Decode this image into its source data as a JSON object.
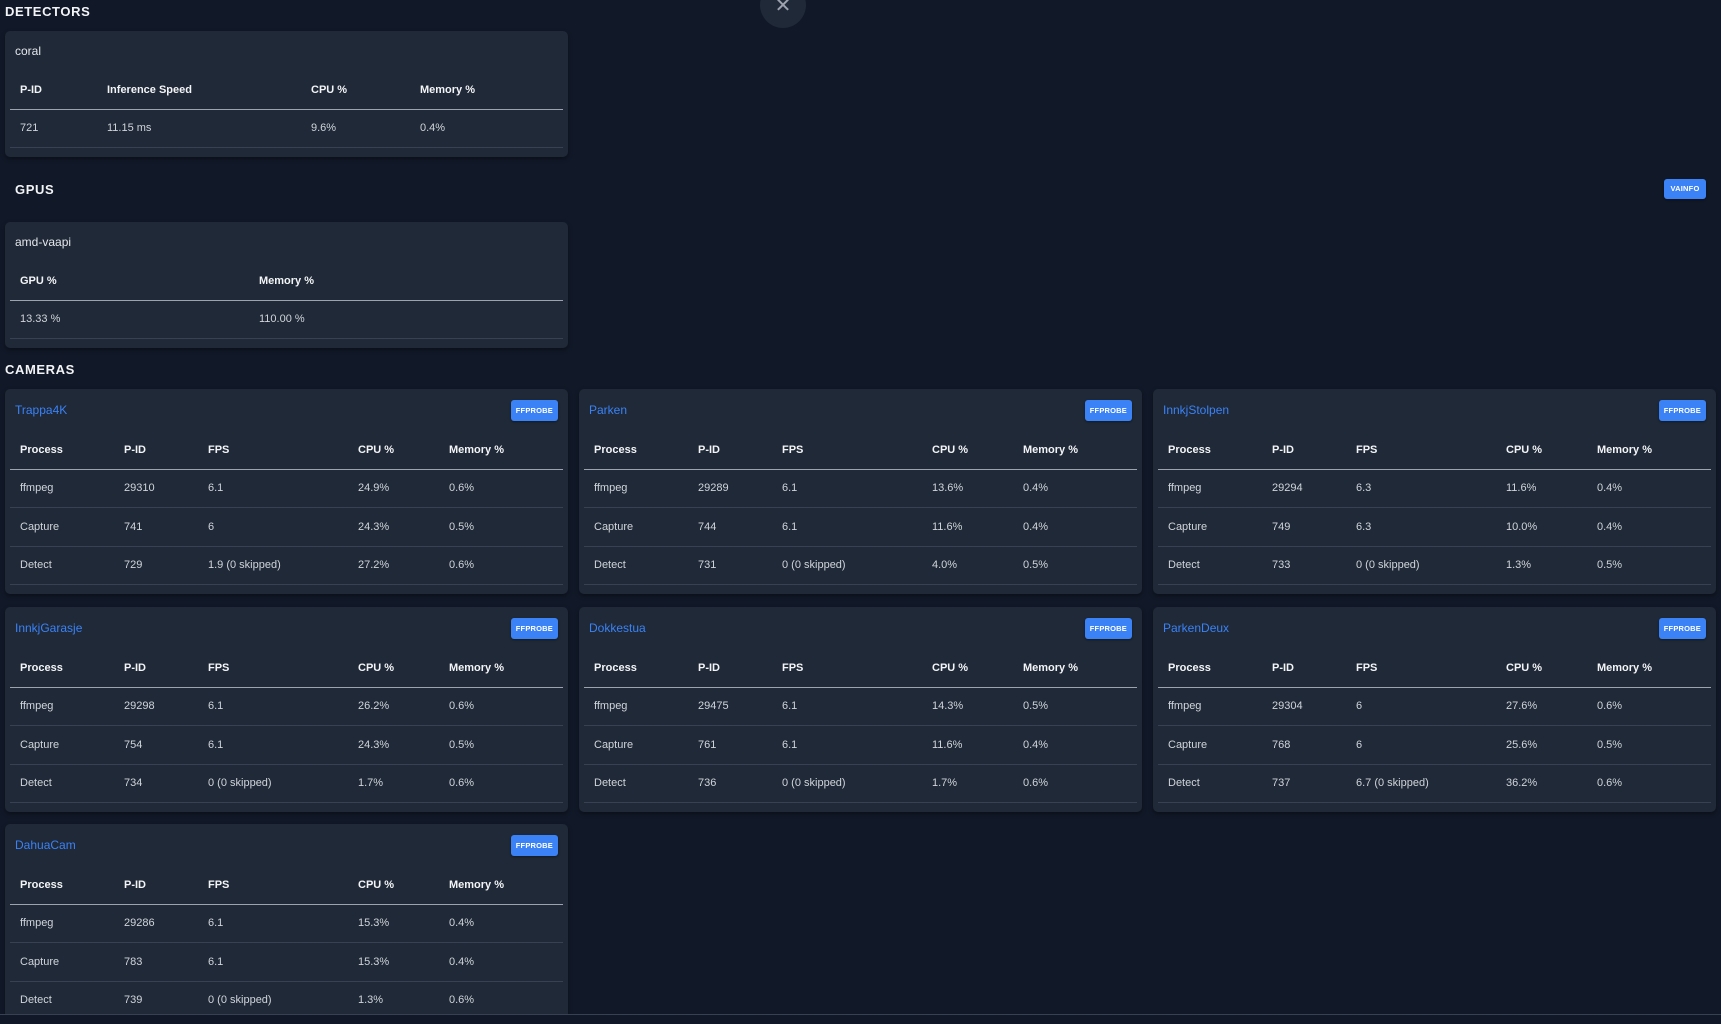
{
  "detectors": {
    "section_title": "DETECTORS",
    "name": "coral",
    "headers": [
      "P-ID",
      "Inference Speed",
      "CPU %",
      "Memory %"
    ],
    "rows": [
      [
        "721",
        "11.15 ms",
        "9.6%",
        "0.4%"
      ]
    ]
  },
  "gpus": {
    "section_title": "GPUS",
    "vainfo_label": "VAINFO",
    "name": "amd-vaapi",
    "headers": [
      "GPU %",
      "Memory %"
    ],
    "rows": [
      [
        "13.33 %",
        "110.00 %"
      ]
    ]
  },
  "cameras": {
    "section_title": "CAMERAS",
    "ffprobe_label": "FFPROBE",
    "headers": [
      "Process",
      "P-ID",
      "FPS",
      "CPU %",
      "Memory %"
    ],
    "list": [
      {
        "name": "Trappa4K",
        "rows": [
          [
            "ffmpeg",
            "29310",
            "6.1",
            "24.9%",
            "0.6%"
          ],
          [
            "Capture",
            "741",
            "6",
            "24.3%",
            "0.5%"
          ],
          [
            "Detect",
            "729",
            "1.9 (0 skipped)",
            "27.2%",
            "0.6%"
          ]
        ]
      },
      {
        "name": "Parken",
        "rows": [
          [
            "ffmpeg",
            "29289",
            "6.1",
            "13.6%",
            "0.4%"
          ],
          [
            "Capture",
            "744",
            "6.1",
            "11.6%",
            "0.4%"
          ],
          [
            "Detect",
            "731",
            "0 (0 skipped)",
            "4.0%",
            "0.5%"
          ]
        ]
      },
      {
        "name": "InnkjStolpen",
        "rows": [
          [
            "ffmpeg",
            "29294",
            "6.3",
            "11.6%",
            "0.4%"
          ],
          [
            "Capture",
            "749",
            "6.3",
            "10.0%",
            "0.4%"
          ],
          [
            "Detect",
            "733",
            "0 (0 skipped)",
            "1.3%",
            "0.5%"
          ]
        ]
      },
      {
        "name": "InnkjGarasje",
        "rows": [
          [
            "ffmpeg",
            "29298",
            "6.1",
            "26.2%",
            "0.6%"
          ],
          [
            "Capture",
            "754",
            "6.1",
            "24.3%",
            "0.5%"
          ],
          [
            "Detect",
            "734",
            "0 (0 skipped)",
            "1.7%",
            "0.6%"
          ]
        ]
      },
      {
        "name": "Dokkestua",
        "rows": [
          [
            "ffmpeg",
            "29475",
            "6.1",
            "14.3%",
            "0.5%"
          ],
          [
            "Capture",
            "761",
            "6.1",
            "11.6%",
            "0.4%"
          ],
          [
            "Detect",
            "736",
            "0 (0 skipped)",
            "1.7%",
            "0.6%"
          ]
        ]
      },
      {
        "name": "ParkenDeux",
        "rows": [
          [
            "ffmpeg",
            "29304",
            "6",
            "27.6%",
            "0.6%"
          ],
          [
            "Capture",
            "768",
            "6",
            "25.6%",
            "0.5%"
          ],
          [
            "Detect",
            "737",
            "6.7 (0 skipped)",
            "36.2%",
            "0.6%"
          ]
        ]
      },
      {
        "name": "DahuaCam",
        "rows": [
          [
            "ffmpeg",
            "29286",
            "6.1",
            "15.3%",
            "0.4%"
          ],
          [
            "Capture",
            "783",
            "6.1",
            "15.3%",
            "0.4%"
          ],
          [
            "Detect",
            "739",
            "0 (0 skipped)",
            "1.3%",
            "0.6%"
          ]
        ]
      }
    ]
  },
  "colors": {
    "background": "#111827",
    "card": "#1f2937",
    "accent": "#3b82f6"
  },
  "icons": {
    "close": "close-icon"
  }
}
